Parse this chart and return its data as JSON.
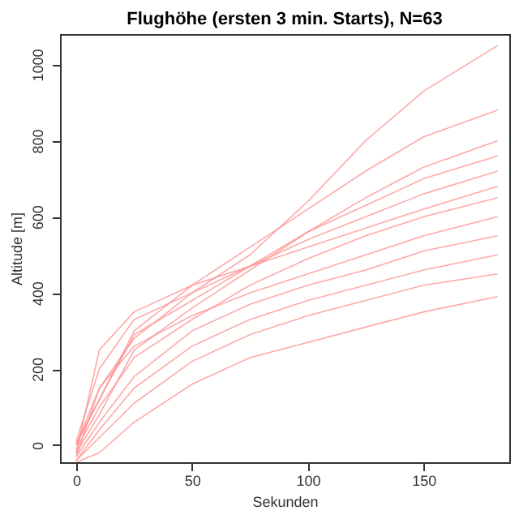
{
  "chart_data": {
    "type": "line",
    "title": "Flughöhe (ersten 3 min. Starts), N=63",
    "xlabel": "Sekunden",
    "ylabel": "Altitude [m]",
    "x": [
      0,
      10,
      25,
      50,
      75,
      100,
      125,
      150,
      182
    ],
    "xlim": [
      -7,
      187
    ],
    "xticks": [
      0,
      50,
      100,
      150
    ],
    "ylim": [
      -45,
      1080
    ],
    "yticks": [
      0,
      200,
      400,
      600,
      800,
      1000
    ],
    "grid": false,
    "legend": false,
    "marker": "none",
    "line_style": "solid",
    "series": [
      {
        "color": "#ff8c8c",
        "values": [
          -30,
          150,
          280,
          400,
          500,
          640,
          800,
          930,
          1050
        ]
      },
      {
        "color": "#ff8c8c",
        "values": [
          0,
          120,
          300,
          420,
          520,
          620,
          720,
          810,
          880
        ]
      },
      {
        "color": "#ff8c8c",
        "values": [
          -20,
          80,
          250,
          360,
          460,
          560,
          650,
          730,
          800
        ]
      },
      {
        "color": "#ff8c8c",
        "values": [
          10,
          200,
          330,
          400,
          470,
          540,
          600,
          660,
          720
        ]
      },
      {
        "color": "#ff8c8c",
        "values": [
          -10,
          100,
          230,
          330,
          420,
          490,
          550,
          600,
          650
        ]
      },
      {
        "color": "#ff8c8c",
        "values": [
          0,
          150,
          260,
          340,
          400,
          450,
          500,
          550,
          600
        ]
      },
      {
        "color": "#ff8c8c",
        "values": [
          -30,
          60,
          180,
          300,
          370,
          420,
          460,
          510,
          550
        ]
      },
      {
        "color": "#ff8c8c",
        "values": [
          -40,
          40,
          150,
          260,
          330,
          380,
          420,
          460,
          500
        ]
      },
      {
        "color": "#ff8c8c",
        "values": [
          -40,
          20,
          110,
          220,
          290,
          340,
          380,
          420,
          450
        ]
      },
      {
        "color": "#ff8c8c",
        "values": [
          -45,
          -20,
          60,
          160,
          230,
          270,
          310,
          350,
          390
        ]
      },
      {
        "color": "#ff8c8c",
        "values": [
          -20,
          250,
          350,
          420,
          470,
          520,
          570,
          620,
          680
        ]
      },
      {
        "color": "#ff8c8c",
        "values": [
          5,
          120,
          290,
          380,
          470,
          560,
          630,
          700,
          760
        ]
      }
    ]
  }
}
